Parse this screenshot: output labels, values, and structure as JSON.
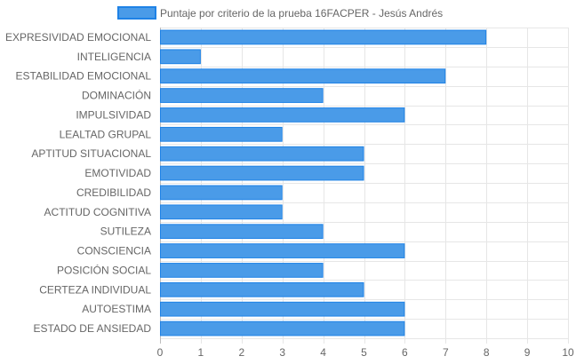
{
  "chart_data": {
    "type": "bar",
    "orientation": "horizontal",
    "legend": {
      "label": "Puntaje por criterio de la prueba 16FACPER - Jesús Andrés",
      "position": "top"
    },
    "categories": [
      "EXPRESIVIDAD EMOCIONAL",
      "INTELIGENCIA",
      "ESTABILIDAD EMOCIONAL",
      "DOMINACIÓN",
      "IMPULSIVIDAD",
      "LEALTAD GRUPAL",
      "APTITUD SITUACIONAL",
      "EMOTIVIDAD",
      "CREDIBILIDAD",
      "ACTITUD COGNITIVA",
      "SUTILEZA",
      "CONSCIENCIA",
      "POSICIÓN SOCIAL",
      "CERTEZA INDIVIDUAL",
      "AUTOESTIMA",
      "ESTADO DE ANSIEDAD"
    ],
    "series": [
      {
        "name": "Puntaje por criterio de la prueba 16FACPER - Jesús Andrés",
        "values": [
          8,
          1,
          7,
          4,
          6,
          3,
          5,
          5,
          3,
          3,
          4,
          6,
          4,
          5,
          6,
          6
        ]
      }
    ],
    "xlim": [
      0,
      10
    ],
    "xticks": [
      0,
      1,
      2,
      3,
      4,
      5,
      6,
      7,
      8,
      9,
      10
    ],
    "grid": true,
    "colors": {
      "bar_fill": "#4a9be8",
      "bar_border": "#1e82e6",
      "grid": "#e6e6e6",
      "text": "#666666"
    }
  }
}
